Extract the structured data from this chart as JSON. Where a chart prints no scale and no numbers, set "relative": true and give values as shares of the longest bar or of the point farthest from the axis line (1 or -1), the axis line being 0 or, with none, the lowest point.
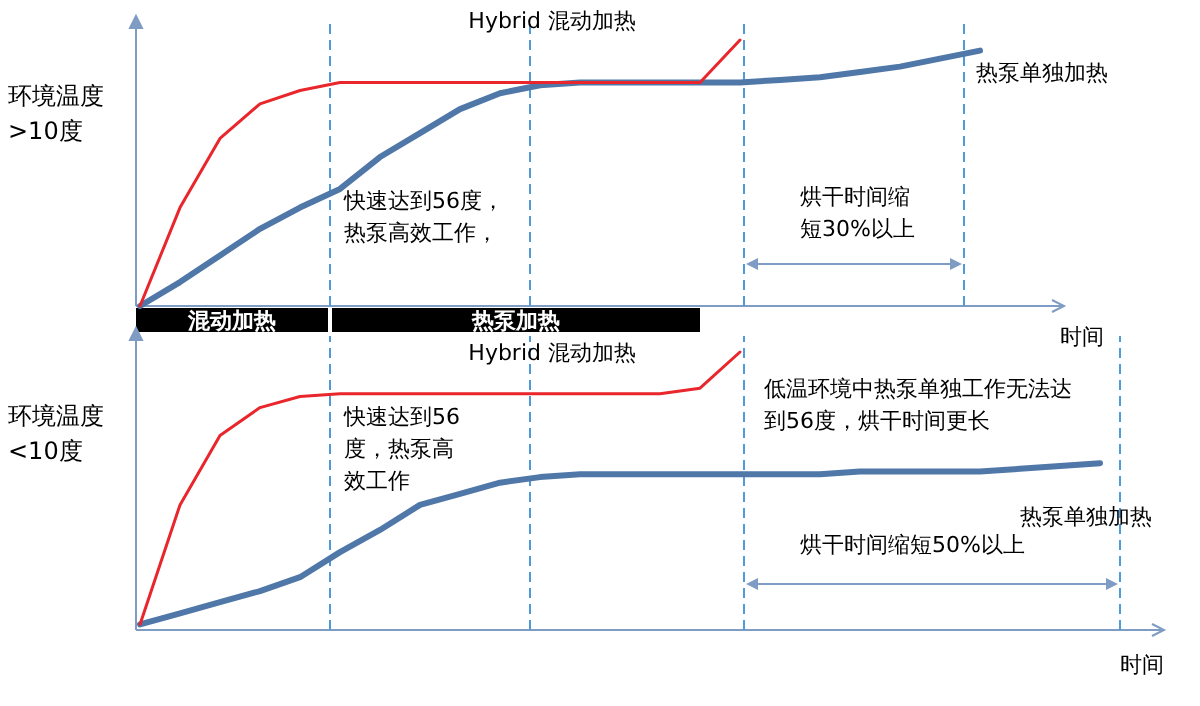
{
  "chart_data": [
    {
      "type": "line",
      "relative": true,
      "ylabel": "环境温度\n>10度",
      "xlabel": "时间",
      "categories": [
        null,
        null,
        null,
        null,
        null,
        null,
        null,
        null,
        null,
        null,
        null,
        null,
        null,
        null,
        null,
        null,
        null,
        null,
        null,
        null,
        null,
        null,
        null,
        null
      ],
      "series": [
        {
          "name": "Hybrid 混动加热",
          "color": "#e8262b",
          "values": [
            0,
            0.37,
            0.63,
            0.76,
            0.81,
            0.84,
            0.84,
            0.84,
            0.84,
            0.84,
            0.84,
            0.84,
            0.84,
            0.84,
            0.84,
            1.0,
            null,
            null,
            null,
            null,
            null,
            null,
            null,
            null
          ]
        },
        {
          "name": "热泵单独加热",
          "color": "#4f77a8",
          "values": [
            0,
            0.09,
            0.19,
            0.29,
            0.37,
            0.44,
            0.56,
            0.65,
            0.74,
            0.8,
            0.83,
            0.84,
            0.84,
            0.84,
            0.84,
            0.84,
            0.85,
            0.86,
            0.88,
            0.9,
            0.93,
            0.96,
            null,
            null
          ]
        }
      ],
      "line_style": "solid",
      "marker": "none",
      "grid": false,
      "legend": false,
      "annotations": [
        "快速达到56度，热泵高效工作，",
        "烘干时间缩短30%以上",
        "混动加热",
        "热泵加热"
      ]
    },
    {
      "type": "line",
      "relative": true,
      "ylabel": "环境温度\n<10度",
      "xlabel": "时间",
      "categories": [
        null,
        null,
        null,
        null,
        null,
        null,
        null,
        null,
        null,
        null,
        null,
        null,
        null,
        null,
        null,
        null,
        null,
        null,
        null,
        null,
        null,
        null,
        null,
        null,
        null,
        null
      ],
      "series": [
        {
          "name": "Hybrid 混动加热",
          "color": "#e8262b",
          "values": [
            0.02,
            0.45,
            0.7,
            0.8,
            0.84,
            0.85,
            0.85,
            0.85,
            0.85,
            0.85,
            0.85,
            0.85,
            0.85,
            0.85,
            0.87,
            1.0,
            null,
            null,
            null,
            null,
            null,
            null,
            null,
            null,
            null,
            null
          ]
        },
        {
          "name": "热泵单独加热",
          "color": "#4f77a8",
          "values": [
            0.02,
            0.06,
            0.1,
            0.14,
            0.19,
            0.28,
            0.36,
            0.45,
            0.49,
            0.53,
            0.55,
            0.56,
            0.56,
            0.56,
            0.56,
            0.56,
            0.56,
            0.56,
            0.57,
            0.57,
            0.57,
            0.57,
            0.58,
            0.59,
            0.6,
            null
          ]
        }
      ],
      "line_style": "solid",
      "marker": "none",
      "grid": false,
      "legend": false,
      "annotations": [
        "快速达到56度，热泵高效工作",
        "低温环境中热泵单独工作无法达到56度，烘干时间更长",
        "烘干时间缩短50%以上"
      ]
    }
  ]
}
